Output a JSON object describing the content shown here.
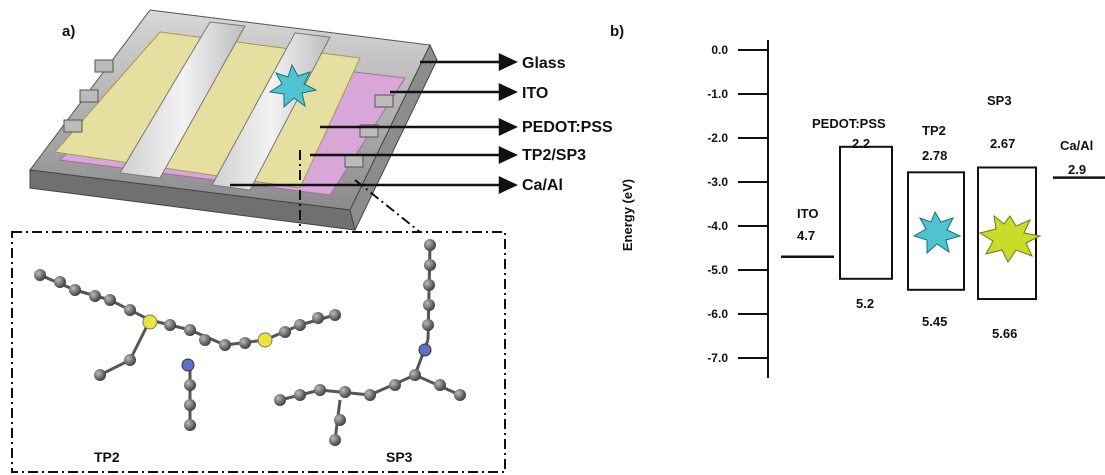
{
  "panel_a": {
    "label": "a)",
    "layers": [
      "Glass",
      "ITO",
      "PEDOT:PSS",
      "TP2/SP3",
      "Ca/Al"
    ],
    "molecules": [
      "TP2",
      "SP3"
    ]
  },
  "panel_b": {
    "label": "b)",
    "ylabel": "Energy (eV)",
    "yticks": [
      "0.0",
      "-1.0",
      "-2.0",
      "-3.0",
      "-4.0",
      "-5.0",
      "-6.0",
      "-7.0"
    ],
    "materials": [
      {
        "name": "ITO",
        "value": "4.7"
      },
      {
        "name": "PEDOT:PSS",
        "upper": "2.2",
        "lower": "5.2"
      },
      {
        "name": "TP2",
        "upper": "2.78",
        "lower": "5.45"
      },
      {
        "name": "SP3",
        "upper": "2.67",
        "lower": "5.66"
      },
      {
        "name": "Ca/Al",
        "value": "2.9"
      }
    ]
  },
  "chart_data": {
    "type": "energy-level-diagram",
    "ylabel": "Energy (eV)",
    "ylim": [
      -7.0,
      0.0
    ],
    "levels": [
      {
        "material": "ITO",
        "work_function": -4.7
      },
      {
        "material": "PEDOT:PSS",
        "lumo": -2.2,
        "homo": -5.2
      },
      {
        "material": "TP2",
        "lumo": -2.78,
        "homo": -5.45
      },
      {
        "material": "SP3",
        "lumo": -2.67,
        "homo": -5.66
      },
      {
        "material": "Ca/Al",
        "work_function": -2.9
      }
    ],
    "colors": {
      "tp2_emission": "#4fc3d0",
      "sp3_emission": "#c9dc2a",
      "pedot_layer": "#d9a6d9",
      "ito_layer": "#e8e3a6"
    }
  }
}
